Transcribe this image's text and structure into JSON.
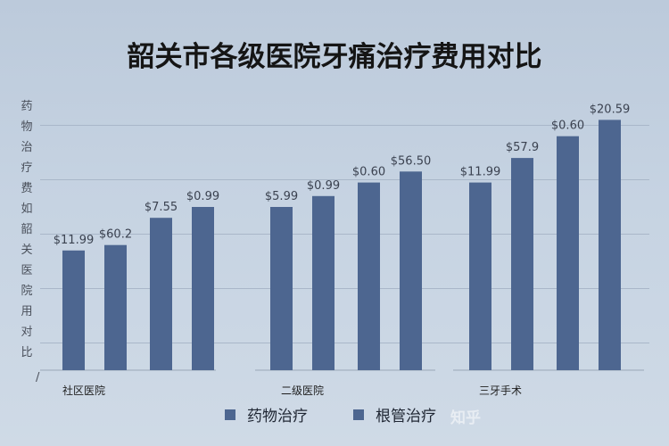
{
  "chart_data": {
    "type": "bar",
    "title": "韶关市各级医院牙痛治疗费用对比",
    "categories": [
      "社区医院",
      "二级医院",
      "三牙手术"
    ],
    "bar_labels": [
      [
        "$11.99",
        "$60.2",
        "$7.55",
        "$0.99"
      ],
      [
        "$5.99",
        "$0.99",
        "$0.60",
        "$56.50"
      ],
      [
        "$11.99",
        "$57.9",
        "$0.60",
        "$20.59"
      ]
    ],
    "values": [
      [
        44,
        46,
        56,
        60
      ],
      [
        60,
        64,
        69,
        73
      ],
      [
        69,
        78,
        86,
        92
      ]
    ],
    "ylim": [
      0,
      100
    ],
    "grid": true,
    "legend": [
      "药物治疗",
      "根管治疗"
    ],
    "legend_position": "bottom-center",
    "ylabel_chars": [
      "药",
      "物",
      "治",
      "疗",
      "费",
      "如",
      "韶",
      "关",
      "医",
      "院",
      "用",
      "对",
      "比"
    ],
    "watermark": "知乎",
    "bar_color": "#4d6690",
    "background_color": "#c3d0e0"
  }
}
